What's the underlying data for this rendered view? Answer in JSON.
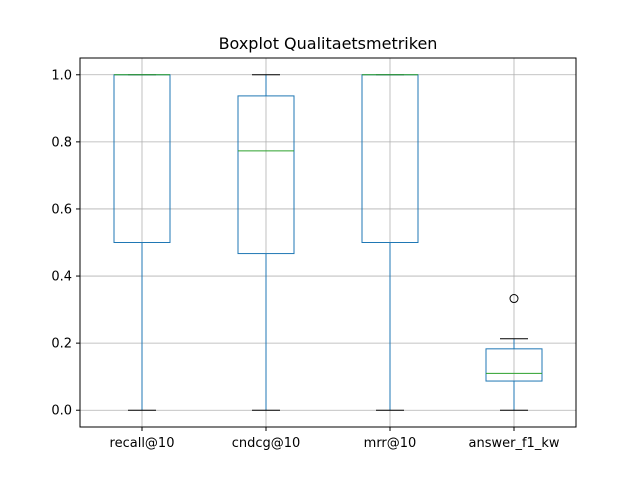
{
  "chart_data": {
    "type": "boxplot",
    "title": "Boxplot Qualitaetsmetriken",
    "xlabel": "",
    "ylabel": "",
    "ylim": [
      -0.05,
      1.05
    ],
    "yticks": [
      "0.0",
      "0.2",
      "0.4",
      "0.6",
      "0.8",
      "1.0"
    ],
    "grid": true,
    "categories": [
      "recall@10",
      "cndcg@10",
      "mrr@10",
      "answer_f1_kw"
    ],
    "boxes": [
      {
        "label": "recall@10",
        "whisker_low": 0.0,
        "q1": 0.5,
        "median": 1.0,
        "q3": 1.0,
        "whisker_high": 1.0,
        "outliers": []
      },
      {
        "label": "cndcg@10",
        "whisker_low": 0.0,
        "q1": 0.467,
        "median": 0.773,
        "q3": 0.937,
        "whisker_high": 1.0,
        "outliers": []
      },
      {
        "label": "mrr@10",
        "whisker_low": 0.0,
        "q1": 0.5,
        "median": 1.0,
        "q3": 1.0,
        "whisker_high": 1.0,
        "outliers": []
      },
      {
        "label": "answer_f1_kw",
        "whisker_low": 0.0,
        "q1": 0.087,
        "median": 0.11,
        "q3": 0.183,
        "whisker_high": 0.213,
        "outliers": [
          0.333
        ]
      }
    ],
    "colors": {
      "box": "#1f77b4",
      "median": "#2ca02c",
      "whisker_cap": "#000000",
      "grid": "#b0b0b0"
    }
  }
}
